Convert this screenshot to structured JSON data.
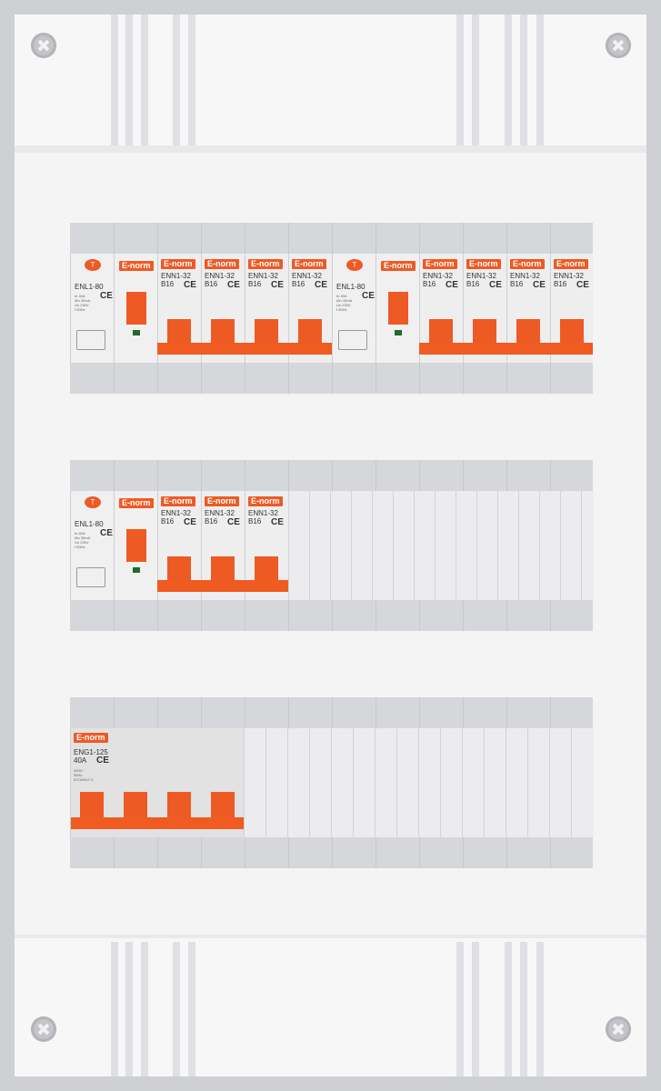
{
  "rows": [
    {
      "rcd": [
        {
          "brand_t": "T",
          "model": "ENL1-80"
        },
        {
          "brand_t": "T",
          "model": "ENL1-80"
        }
      ],
      "mcb_model": "ENN1-32",
      "mcb_rating": "B16",
      "brand": "E-norm",
      "ce": "CE"
    },
    {
      "rcd": [
        {
          "brand_t": "T",
          "model": "ENL1-80"
        }
      ],
      "mcb_model": "ENN1-32",
      "mcb_rating": "B16",
      "brand": "E-norm",
      "ce": "CE"
    },
    {
      "isolator": {
        "model": "ENG1-125",
        "rating": "40A"
      },
      "brand": "E-norm",
      "ce": "CE"
    }
  ],
  "colors": {
    "accent": "#ee5a24",
    "panel": "#f4f4f5",
    "frame": "#cfd0d3"
  }
}
